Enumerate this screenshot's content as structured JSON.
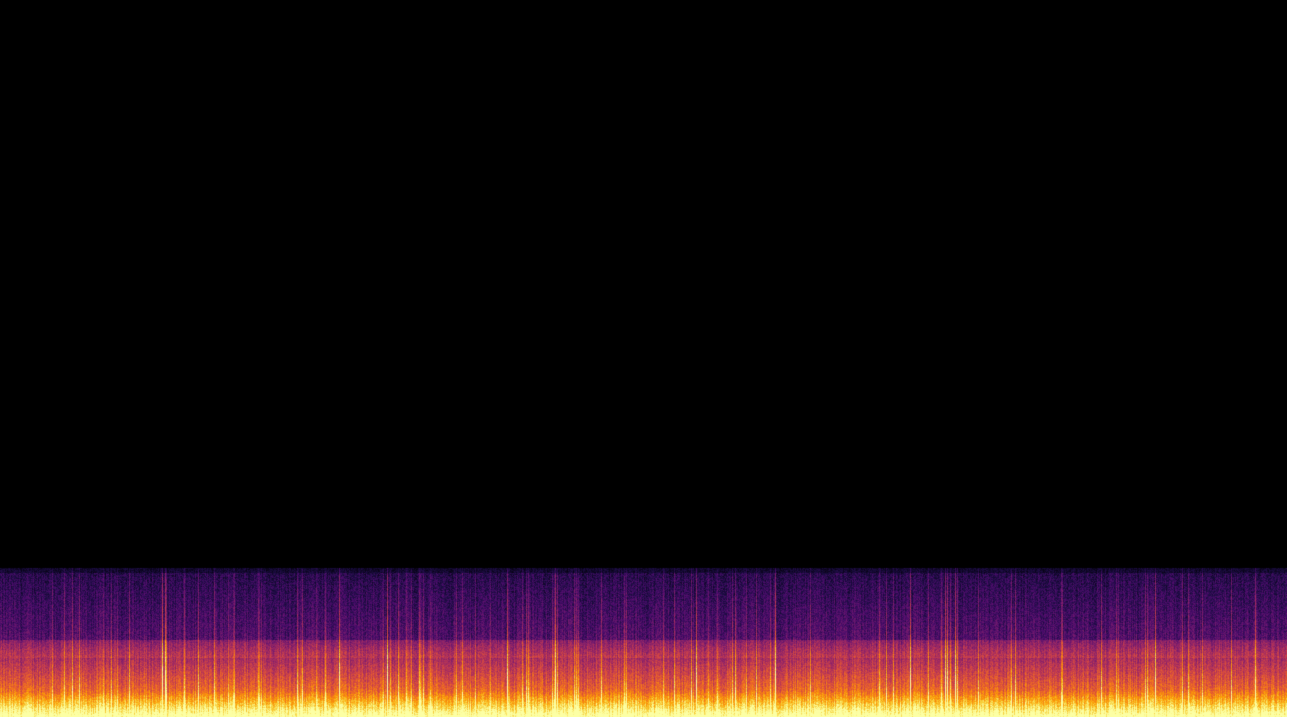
{
  "spectrogram": {
    "colormap": [
      "#000004",
      "#1b0c41",
      "#4a0c6b",
      "#781c6d",
      "#a52c60",
      "#cf4446",
      "#ed6925",
      "#fb9b06",
      "#f7d13d",
      "#fcffa4"
    ],
    "background_color": "#000000"
  }
}
